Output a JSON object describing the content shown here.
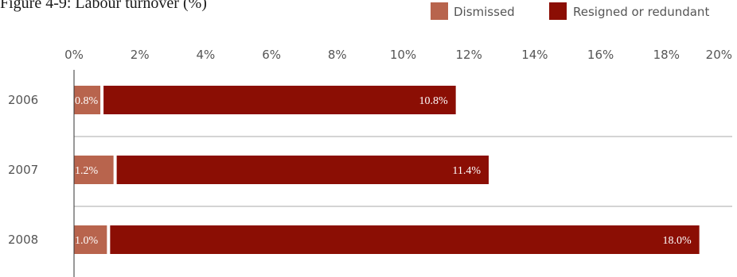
{
  "chart_data": {
    "type": "bar",
    "orientation": "horizontal",
    "stacked": true,
    "title": "Figure 4-9: Labour turnover (%)",
    "categories": [
      "2006",
      "2007",
      "2008"
    ],
    "series": [
      {
        "name": "Dismissed",
        "values": [
          0.8,
          1.2,
          1.0
        ],
        "labels": [
          "0.8%",
          "1.2%",
          "1.0%"
        ],
        "color": "#b8644d"
      },
      {
        "name": "Resigned or redundant",
        "values": [
          10.8,
          11.4,
          18.0
        ],
        "labels": [
          "10.8%",
          "11.4%",
          "18.0%"
        ],
        "color": "#8b0e04"
      }
    ],
    "xlim": [
      0,
      20
    ],
    "xticks": [
      "0%",
      "2%",
      "4%",
      "6%",
      "8%",
      "10%",
      "12%",
      "14%",
      "16%",
      "18%",
      "20%"
    ],
    "xaxis_position": "top",
    "grid": false,
    "legend_position": "top-right"
  }
}
